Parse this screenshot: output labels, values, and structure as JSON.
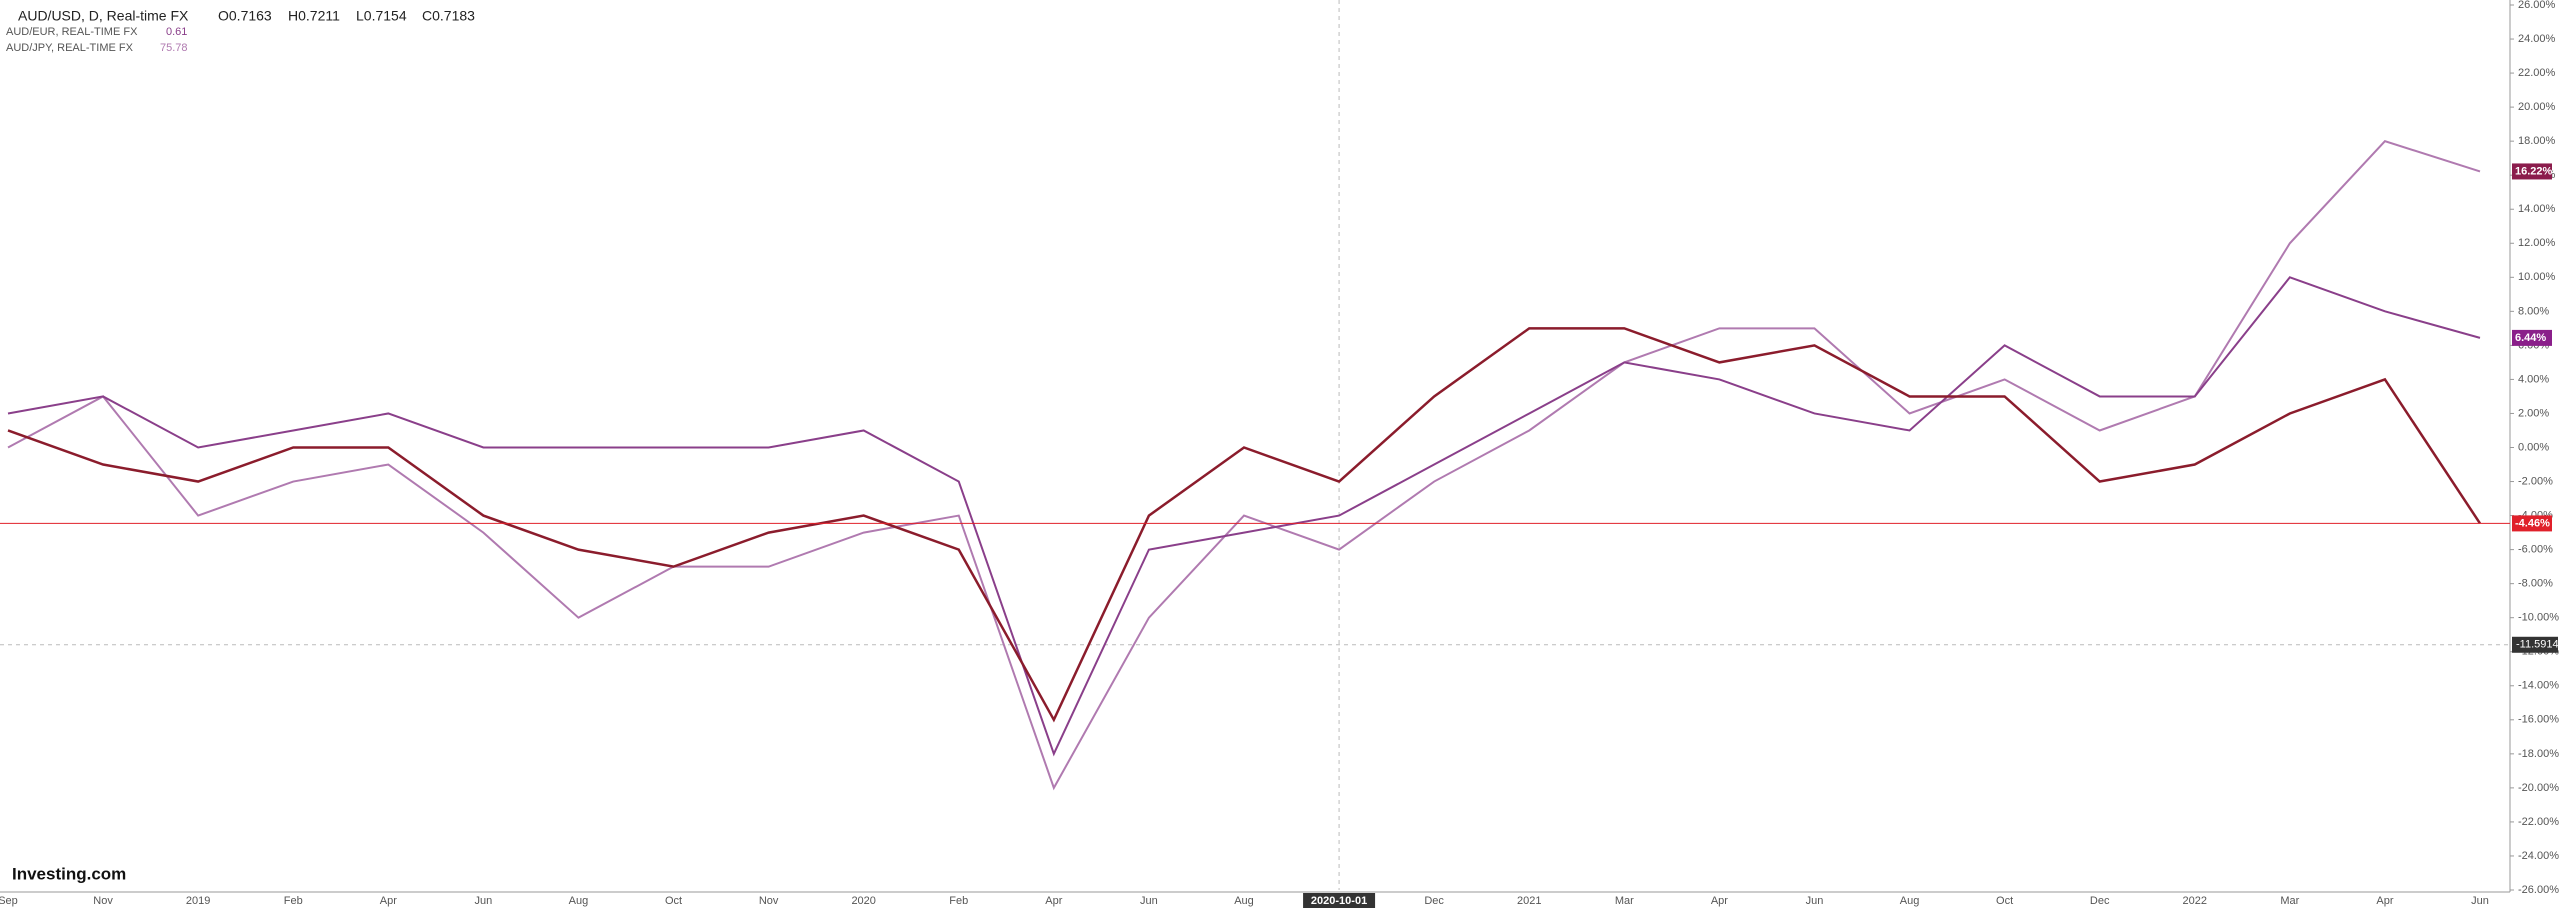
{
  "header": {
    "symbol": "AUD/USD, D, Real-time FX",
    "ohlc": [
      "O0.7163",
      "H0.7211",
      "L0.7154",
      "C0.7183"
    ],
    "compare": [
      {
        "name": "AUD/EUR, REAL-TIME FX",
        "price": "0.61"
      },
      {
        "name": "AUD/JPY, REAL-TIME FX",
        "price": "75.78"
      }
    ],
    "logo": "Investing.com"
  },
  "chart_data": {
    "type": "line",
    "categories": [
      "Sep",
      "Nov",
      "2019",
      "Feb",
      "Apr",
      "Jun",
      "Aug",
      "Oct",
      "Nov",
      "2020",
      "Feb",
      "Apr",
      "Jun",
      "Aug",
      "2020-10-01",
      "Dec",
      "2021",
      "Mar",
      "Apr",
      "Jun",
      "Aug",
      "Oct",
      "Dec",
      "2022",
      "Mar",
      "Apr",
      "Jun"
    ],
    "series": [
      {
        "name": "AUD/USD",
        "color": "#8b1c2c",
        "values": [
          1,
          -1,
          -2,
          0,
          0,
          -4,
          -6,
          -7,
          -5,
          -4,
          -6,
          -16,
          -4,
          0,
          -2,
          3,
          7,
          7,
          5,
          6,
          3,
          3,
          -2,
          -1,
          2,
          4,
          -4.46
        ]
      },
      {
        "name": "AUD/EUR",
        "color": "#8a3f8a",
        "values": [
          2,
          3,
          0,
          1,
          2,
          0,
          0,
          0,
          0,
          1,
          -2,
          -18,
          -6,
          -5,
          -4,
          -1,
          2,
          5,
          4,
          2,
          1,
          6,
          3,
          3,
          10,
          8,
          6.44
        ]
      },
      {
        "name": "AUD/JPY",
        "color": "#b07ab0",
        "values": [
          0,
          3,
          -4,
          -2,
          -1,
          -5,
          -10,
          -7,
          -7,
          -5,
          -4,
          -20,
          -10,
          -4,
          -6,
          -2,
          1,
          5,
          7,
          7,
          2,
          4,
          1,
          3,
          12,
          18,
          16.22
        ]
      }
    ],
    "badges": [
      {
        "value": 16.22,
        "label": "16.22%",
        "color": "#8b1c4c"
      },
      {
        "value": 6.44,
        "label": "6.44%",
        "color": "#8a1f8a"
      },
      {
        "value": -4.46,
        "label": "-4.46%",
        "color": "#e0202a"
      }
    ],
    "crosshair": {
      "x": 14,
      "y": -11.5914
    },
    "ylim": [
      -26,
      26
    ],
    "yticks": [
      {
        "value": 26,
        "label": "26.00%"
      },
      {
        "value": 24,
        "label": "24.00%"
      },
      {
        "value": 22,
        "label": "22.00%"
      },
      {
        "value": 20,
        "label": "20.00%"
      },
      {
        "value": 18,
        "label": "18.00%"
      },
      {
        "value": 16,
        "label": "16.00%"
      },
      {
        "value": 14,
        "label": "14.00%"
      },
      {
        "value": 12,
        "label": "12.00%"
      },
      {
        "value": 10,
        "label": "10.00%"
      },
      {
        "value": 8,
        "label": "8.00%"
      },
      {
        "value": 6,
        "label": "6.00%"
      },
      {
        "value": 4,
        "label": "4.00%"
      },
      {
        "value": 2,
        "label": "2.00%"
      },
      {
        "value": 0,
        "label": "0.00%"
      },
      {
        "value": -2,
        "label": "-2.00%"
      },
      {
        "value": -4,
        "label": "-4.00%"
      },
      {
        "value": -6,
        "label": "-6.00%"
      },
      {
        "value": -8,
        "label": "-8.00%"
      },
      {
        "value": -10,
        "label": "-10.00%"
      },
      {
        "value": -12,
        "label": "-12.00%"
      },
      {
        "value": -14,
        "label": "-14.00%"
      },
      {
        "value": -16,
        "label": "-16.00%"
      },
      {
        "value": -18,
        "label": "-18.00%"
      },
      {
        "value": -20,
        "label": "-20.00%"
      },
      {
        "value": -22,
        "label": "-22.00%"
      },
      {
        "value": -24,
        "label": "-24.00%"
      },
      {
        "value": -26,
        "label": "-26.00%"
      }
    ]
  }
}
